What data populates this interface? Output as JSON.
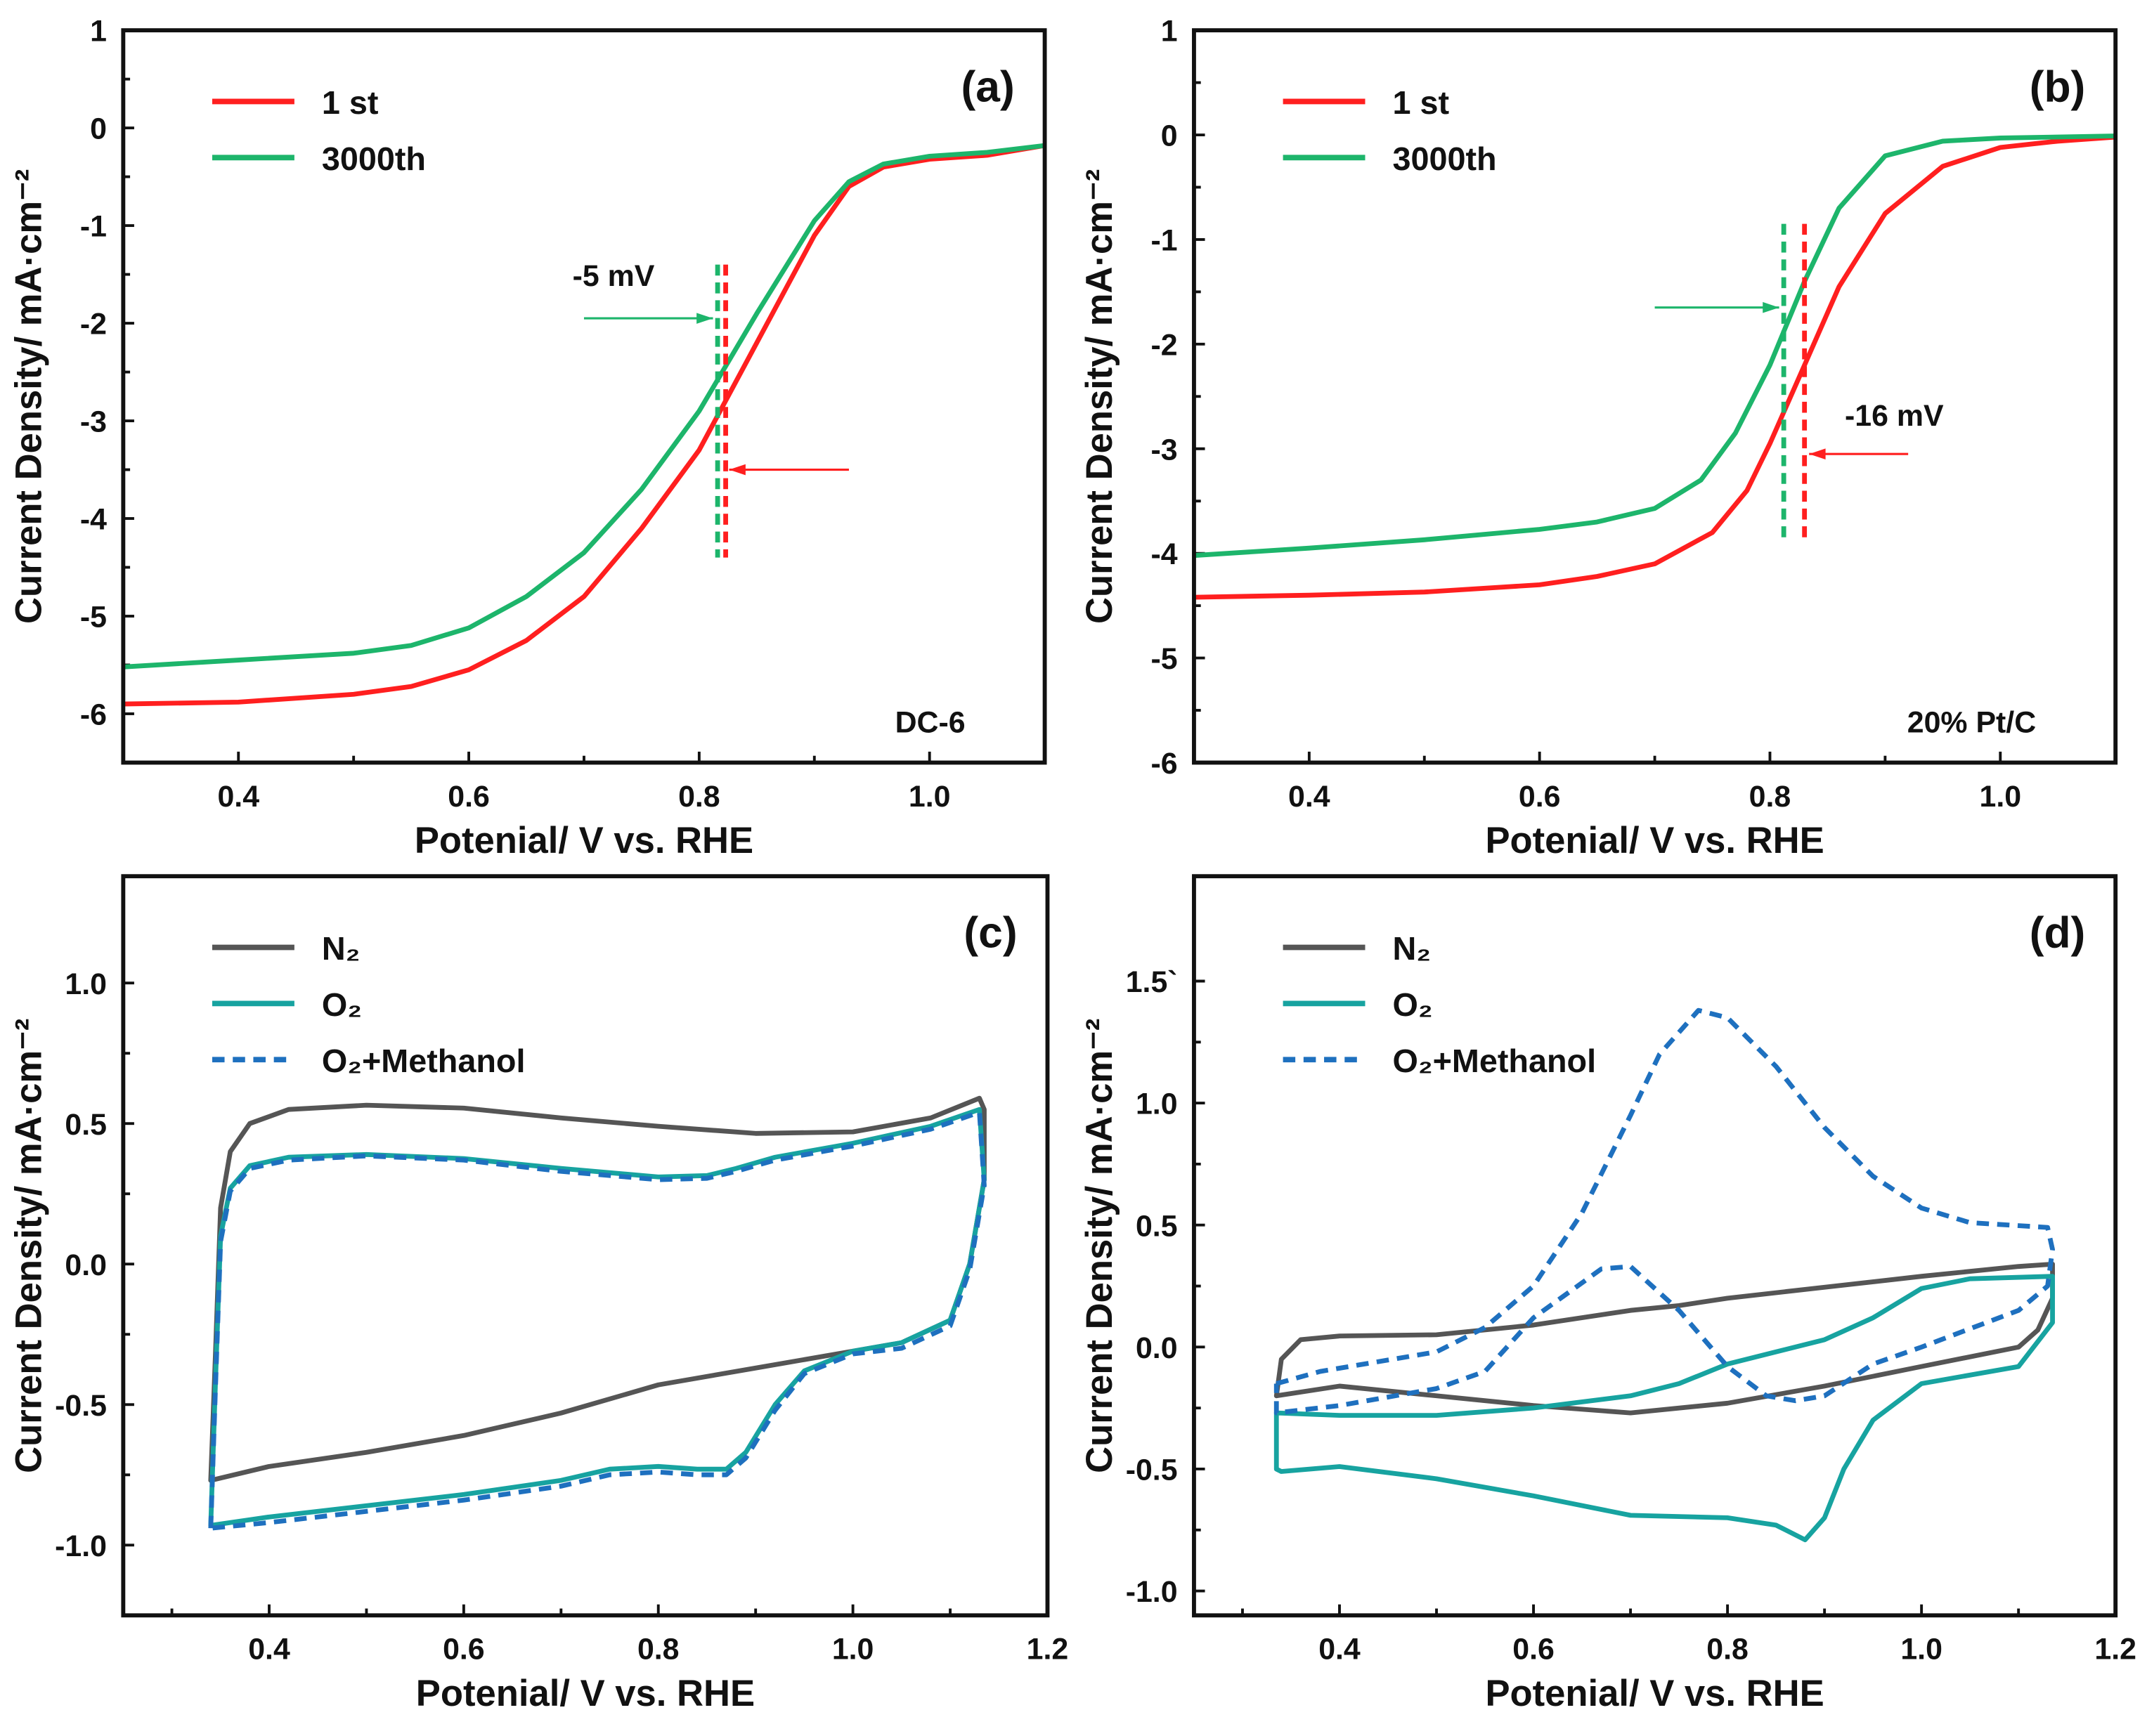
{
  "chart_data": [
    {
      "id": "a",
      "type": "line",
      "panel_label": "(a)",
      "sample_label": "DC-6",
      "xlabel": "Potenial/ V vs. RHE",
      "ylabel": "Current Density/ mA·cm⁻²",
      "xlim": [
        0.3,
        1.1
      ],
      "ylim": [
        -6.5,
        1
      ],
      "xticks": [
        0.4,
        0.6,
        0.8,
        1.0
      ],
      "xtick_labels": [
        "0.4",
        "0.6",
        "0.8",
        "1.0"
      ],
      "yticks": [
        1,
        0,
        -1,
        -2,
        -3,
        -4,
        -5,
        -6
      ],
      "ytick_labels": [
        "1",
        "0",
        "-1",
        "-2",
        "-3",
        "-4",
        "-5",
        "-6"
      ],
      "legend_position": "top-left",
      "series": [
        {
          "name": "1 st",
          "color": "#ff1f1f",
          "dash": false,
          "x": [
            0.3,
            0.4,
            0.5,
            0.55,
            0.6,
            0.65,
            0.7,
            0.75,
            0.8,
            0.85,
            0.9,
            0.93,
            0.96,
            1.0,
            1.05,
            1.1
          ],
          "y": [
            -5.9,
            -5.88,
            -5.8,
            -5.72,
            -5.55,
            -5.25,
            -4.8,
            -4.1,
            -3.3,
            -2.2,
            -1.1,
            -0.6,
            -0.4,
            -0.32,
            -0.28,
            -0.18
          ]
        },
        {
          "name": "3000th",
          "color": "#1db56b",
          "dash": false,
          "x": [
            0.3,
            0.4,
            0.5,
            0.55,
            0.6,
            0.65,
            0.7,
            0.75,
            0.8,
            0.85,
            0.9,
            0.93,
            0.96,
            1.0,
            1.05,
            1.1
          ],
          "y": [
            -5.52,
            -5.45,
            -5.38,
            -5.3,
            -5.12,
            -4.8,
            -4.35,
            -3.7,
            -2.9,
            -1.9,
            -0.95,
            -0.55,
            -0.37,
            -0.29,
            -0.25,
            -0.18
          ]
        }
      ],
      "markers": [
        {
          "x": 0.816,
          "y_range": [
            -1.4,
            -4.4
          ],
          "color": "#1db56b"
        },
        {
          "x": 0.823,
          "y_range": [
            -1.4,
            -4.4
          ],
          "color": "#ff1f1f"
        }
      ],
      "arrows": [
        {
          "from": [
            0.7,
            -1.95
          ],
          "to": [
            0.812,
            -1.95
          ],
          "color": "#1db56b"
        },
        {
          "from": [
            0.93,
            -3.5
          ],
          "to": [
            0.826,
            -3.5
          ],
          "color": "#ff1f1f"
        }
      ],
      "annotations": [
        {
          "text": "-5 mV",
          "x": 0.69,
          "y": -1.62
        }
      ]
    },
    {
      "id": "b",
      "type": "line",
      "panel_label": "(b)",
      "sample_label": "20% Pt/C",
      "xlabel": "Potenial/ V vs. RHE",
      "ylabel": "Current Density/ mA·cm⁻²",
      "xlim": [
        0.3,
        1.1
      ],
      "ylim": [
        -6,
        1
      ],
      "xticks": [
        0.4,
        0.6,
        0.8,
        1.0
      ],
      "xtick_labels": [
        "0.4",
        "0.6",
        "0.8",
        "1.0"
      ],
      "yticks": [
        1,
        0,
        -1,
        -2,
        -3,
        -4,
        -5,
        -6
      ],
      "ytick_labels": [
        "1",
        "0",
        "-1",
        "-2",
        "-3",
        "-4",
        "-5",
        "-6"
      ],
      "legend_position": "top-left",
      "series": [
        {
          "name": "1 st",
          "color": "#ff1f1f",
          "dash": false,
          "x": [
            0.3,
            0.4,
            0.5,
            0.6,
            0.65,
            0.7,
            0.75,
            0.78,
            0.8,
            0.83,
            0.86,
            0.9,
            0.95,
            1.0,
            1.05,
            1.1
          ],
          "y": [
            -4.42,
            -4.4,
            -4.37,
            -4.3,
            -4.22,
            -4.1,
            -3.8,
            -3.4,
            -2.95,
            -2.2,
            -1.45,
            -0.75,
            -0.3,
            -0.12,
            -0.06,
            -0.02
          ]
        },
        {
          "name": "3000th",
          "color": "#1db56b",
          "dash": false,
          "x": [
            0.3,
            0.4,
            0.5,
            0.6,
            0.65,
            0.7,
            0.74,
            0.77,
            0.8,
            0.83,
            0.86,
            0.9,
            0.95,
            1.0,
            1.1
          ],
          "y": [
            -4.02,
            -3.95,
            -3.87,
            -3.77,
            -3.7,
            -3.57,
            -3.3,
            -2.85,
            -2.2,
            -1.4,
            -0.7,
            -0.2,
            -0.06,
            -0.03,
            -0.01
          ]
        }
      ],
      "markers": [
        {
          "x": 0.812,
          "y_range": [
            -0.85,
            -3.9
          ],
          "color": "#1db56b"
        },
        {
          "x": 0.83,
          "y_range": [
            -0.85,
            -3.9
          ],
          "color": "#ff1f1f"
        }
      ],
      "arrows": [
        {
          "from": [
            0.7,
            -1.65
          ],
          "to": [
            0.808,
            -1.65
          ],
          "color": "#1db56b"
        },
        {
          "from": [
            0.92,
            -3.05
          ],
          "to": [
            0.834,
            -3.05
          ],
          "color": "#ff1f1f"
        }
      ],
      "annotations": [
        {
          "text": "-16 mV",
          "x": 0.865,
          "y": -2.78
        }
      ]
    },
    {
      "id": "c",
      "type": "line",
      "panel_label": "(c)",
      "xlabel": "Potenial/ V vs. RHE",
      "ylabel": "Current Density/ mA·cm⁻²",
      "xlim": [
        0.25,
        1.2
      ],
      "ylim": [
        -1.25,
        1.38
      ],
      "xticks": [
        0.4,
        0.6,
        0.8,
        1.0,
        1.2
      ],
      "xtick_labels": [
        "0.4",
        "0.6",
        "0.8",
        "1.0",
        "1.2"
      ],
      "yticks": [
        1.0,
        0.5,
        0.0,
        -0.5,
        -1.0
      ],
      "ytick_labels": [
        "1.0",
        "0.5",
        "0.0",
        "-0.5",
        "-1.0"
      ],
      "legend_position": "top-left",
      "series": [
        {
          "name": "N₂",
          "color": "#555555",
          "dash": false,
          "x": [
            0.34,
            0.345,
            0.35,
            0.36,
            0.38,
            0.42,
            0.5,
            0.6,
            0.7,
            0.8,
            0.9,
            1.0,
            1.08,
            1.13,
            1.135,
            1.135,
            1.12,
            1.1,
            1.05,
            1.0,
            0.9,
            0.8,
            0.7,
            0.6,
            0.5,
            0.4,
            0.34
          ],
          "y": [
            -0.77,
            -0.3,
            0.2,
            0.4,
            0.5,
            0.55,
            0.565,
            0.555,
            0.52,
            0.49,
            0.465,
            0.47,
            0.52,
            0.59,
            0.55,
            0.3,
            0.0,
            -0.2,
            -0.28,
            -0.31,
            -0.37,
            -0.43,
            -0.53,
            -0.61,
            -0.67,
            -0.72,
            -0.77
          ]
        },
        {
          "name": "O₂",
          "color": "#17a3a0",
          "dash": false,
          "x": [
            0.34,
            0.345,
            0.35,
            0.36,
            0.38,
            0.42,
            0.5,
            0.6,
            0.7,
            0.8,
            0.85,
            0.88,
            0.92,
            1.0,
            1.08,
            1.13,
            1.135,
            1.12,
            1.1,
            1.05,
            1.0,
            0.95,
            0.92,
            0.89,
            0.87,
            0.84,
            0.8,
            0.75,
            0.7,
            0.6,
            0.5,
            0.4,
            0.34
          ],
          "y": [
            -0.93,
            -0.4,
            0.1,
            0.27,
            0.35,
            0.38,
            0.39,
            0.375,
            0.34,
            0.31,
            0.315,
            0.34,
            0.38,
            0.43,
            0.49,
            0.55,
            0.3,
            0.0,
            -0.2,
            -0.28,
            -0.31,
            -0.38,
            -0.5,
            -0.67,
            -0.73,
            -0.73,
            -0.72,
            -0.73,
            -0.77,
            -0.82,
            -0.86,
            -0.9,
            -0.93
          ]
        },
        {
          "name": "O₂+Methanol",
          "color": "#1e70bf",
          "dash": true,
          "x": [
            0.34,
            0.345,
            0.35,
            0.36,
            0.38,
            0.42,
            0.5,
            0.6,
            0.7,
            0.8,
            0.85,
            0.88,
            0.92,
            1.0,
            1.08,
            1.13,
            1.135,
            1.12,
            1.1,
            1.05,
            1.0,
            0.95,
            0.92,
            0.89,
            0.87,
            0.84,
            0.8,
            0.75,
            0.7,
            0.6,
            0.5,
            0.4,
            0.34
          ],
          "y": [
            -0.94,
            -0.42,
            0.08,
            0.26,
            0.34,
            0.37,
            0.385,
            0.37,
            0.33,
            0.3,
            0.305,
            0.33,
            0.37,
            0.42,
            0.48,
            0.54,
            0.28,
            -0.02,
            -0.22,
            -0.3,
            -0.32,
            -0.39,
            -0.52,
            -0.69,
            -0.75,
            -0.75,
            -0.74,
            -0.75,
            -0.79,
            -0.84,
            -0.88,
            -0.92,
            -0.94
          ]
        }
      ]
    },
    {
      "id": "d",
      "type": "line",
      "panel_label": "(d)",
      "xlabel": "Potenial/ V vs. RHE",
      "ylabel": "Current Density/ mA·cm⁻²",
      "xlim": [
        0.25,
        1.2
      ],
      "ylim": [
        -1.1,
        1.93
      ],
      "xticks": [
        0.4,
        0.6,
        0.8,
        1.0,
        1.2
      ],
      "xtick_labels": [
        "0.4",
        "0.6",
        "0.8",
        "1.0",
        "1.2"
      ],
      "yticks": [
        1.5,
        1.0,
        0.5,
        0.0,
        -0.5,
        -1.0
      ],
      "ytick_labels": [
        "1.5`",
        "1.0",
        "0.5",
        "0.0",
        "-0.5",
        "-1.0"
      ],
      "legend_position": "top-left",
      "series": [
        {
          "name": "N₂",
          "color": "#555555",
          "dash": false,
          "x": [
            0.335,
            0.34,
            0.36,
            0.4,
            0.5,
            0.6,
            0.7,
            0.75,
            0.8,
            0.9,
            1.0,
            1.1,
            1.135,
            1.135,
            1.12,
            1.1,
            1.0,
            0.9,
            0.8,
            0.7,
            0.6,
            0.5,
            0.4,
            0.335
          ],
          "y": [
            -0.2,
            -0.05,
            0.03,
            0.045,
            0.05,
            0.09,
            0.15,
            0.17,
            0.2,
            0.245,
            0.29,
            0.33,
            0.34,
            0.2,
            0.07,
            0.0,
            -0.08,
            -0.16,
            -0.23,
            -0.27,
            -0.24,
            -0.2,
            -0.16,
            -0.2
          ]
        },
        {
          "name": "O₂",
          "color": "#17a3a0",
          "dash": false,
          "x": [
            0.335,
            0.4,
            0.5,
            0.6,
            0.7,
            0.75,
            0.8,
            0.85,
            0.9,
            0.95,
            1.0,
            1.05,
            1.135,
            1.135,
            1.1,
            1.0,
            0.95,
            0.92,
            0.9,
            0.88,
            0.85,
            0.8,
            0.7,
            0.6,
            0.5,
            0.4,
            0.34,
            0.335,
            0.335
          ],
          "y": [
            -0.27,
            -0.28,
            -0.28,
            -0.25,
            -0.2,
            -0.15,
            -0.07,
            -0.02,
            0.03,
            0.12,
            0.24,
            0.28,
            0.29,
            0.1,
            -0.08,
            -0.15,
            -0.3,
            -0.5,
            -0.7,
            -0.79,
            -0.73,
            -0.7,
            -0.69,
            -0.61,
            -0.54,
            -0.49,
            -0.51,
            -0.5,
            -0.27
          ]
        },
        {
          "name": "O₂+Methanol",
          "color": "#1e70bf",
          "dash": true,
          "x": [
            0.335,
            0.38,
            0.5,
            0.55,
            0.6,
            0.65,
            0.7,
            0.73,
            0.77,
            0.8,
            0.85,
            0.9,
            0.95,
            1.0,
            1.05,
            1.13,
            1.135,
            1.13,
            1.1,
            1.0,
            0.95,
            0.9,
            0.87,
            0.84,
            0.8,
            0.75,
            0.7,
            0.67,
            0.6,
            0.55,
            0.5,
            0.4,
            0.335,
            0.335
          ],
          "y": [
            -0.15,
            -0.1,
            -0.02,
            0.08,
            0.25,
            0.55,
            0.95,
            1.2,
            1.38,
            1.35,
            1.15,
            0.9,
            0.7,
            0.57,
            0.51,
            0.49,
            0.4,
            0.25,
            0.15,
            0.0,
            -0.07,
            -0.2,
            -0.22,
            -0.2,
            -0.08,
            0.15,
            0.33,
            0.32,
            0.12,
            -0.1,
            -0.17,
            -0.24,
            -0.27,
            -0.15
          ]
        }
      ]
    }
  ]
}
